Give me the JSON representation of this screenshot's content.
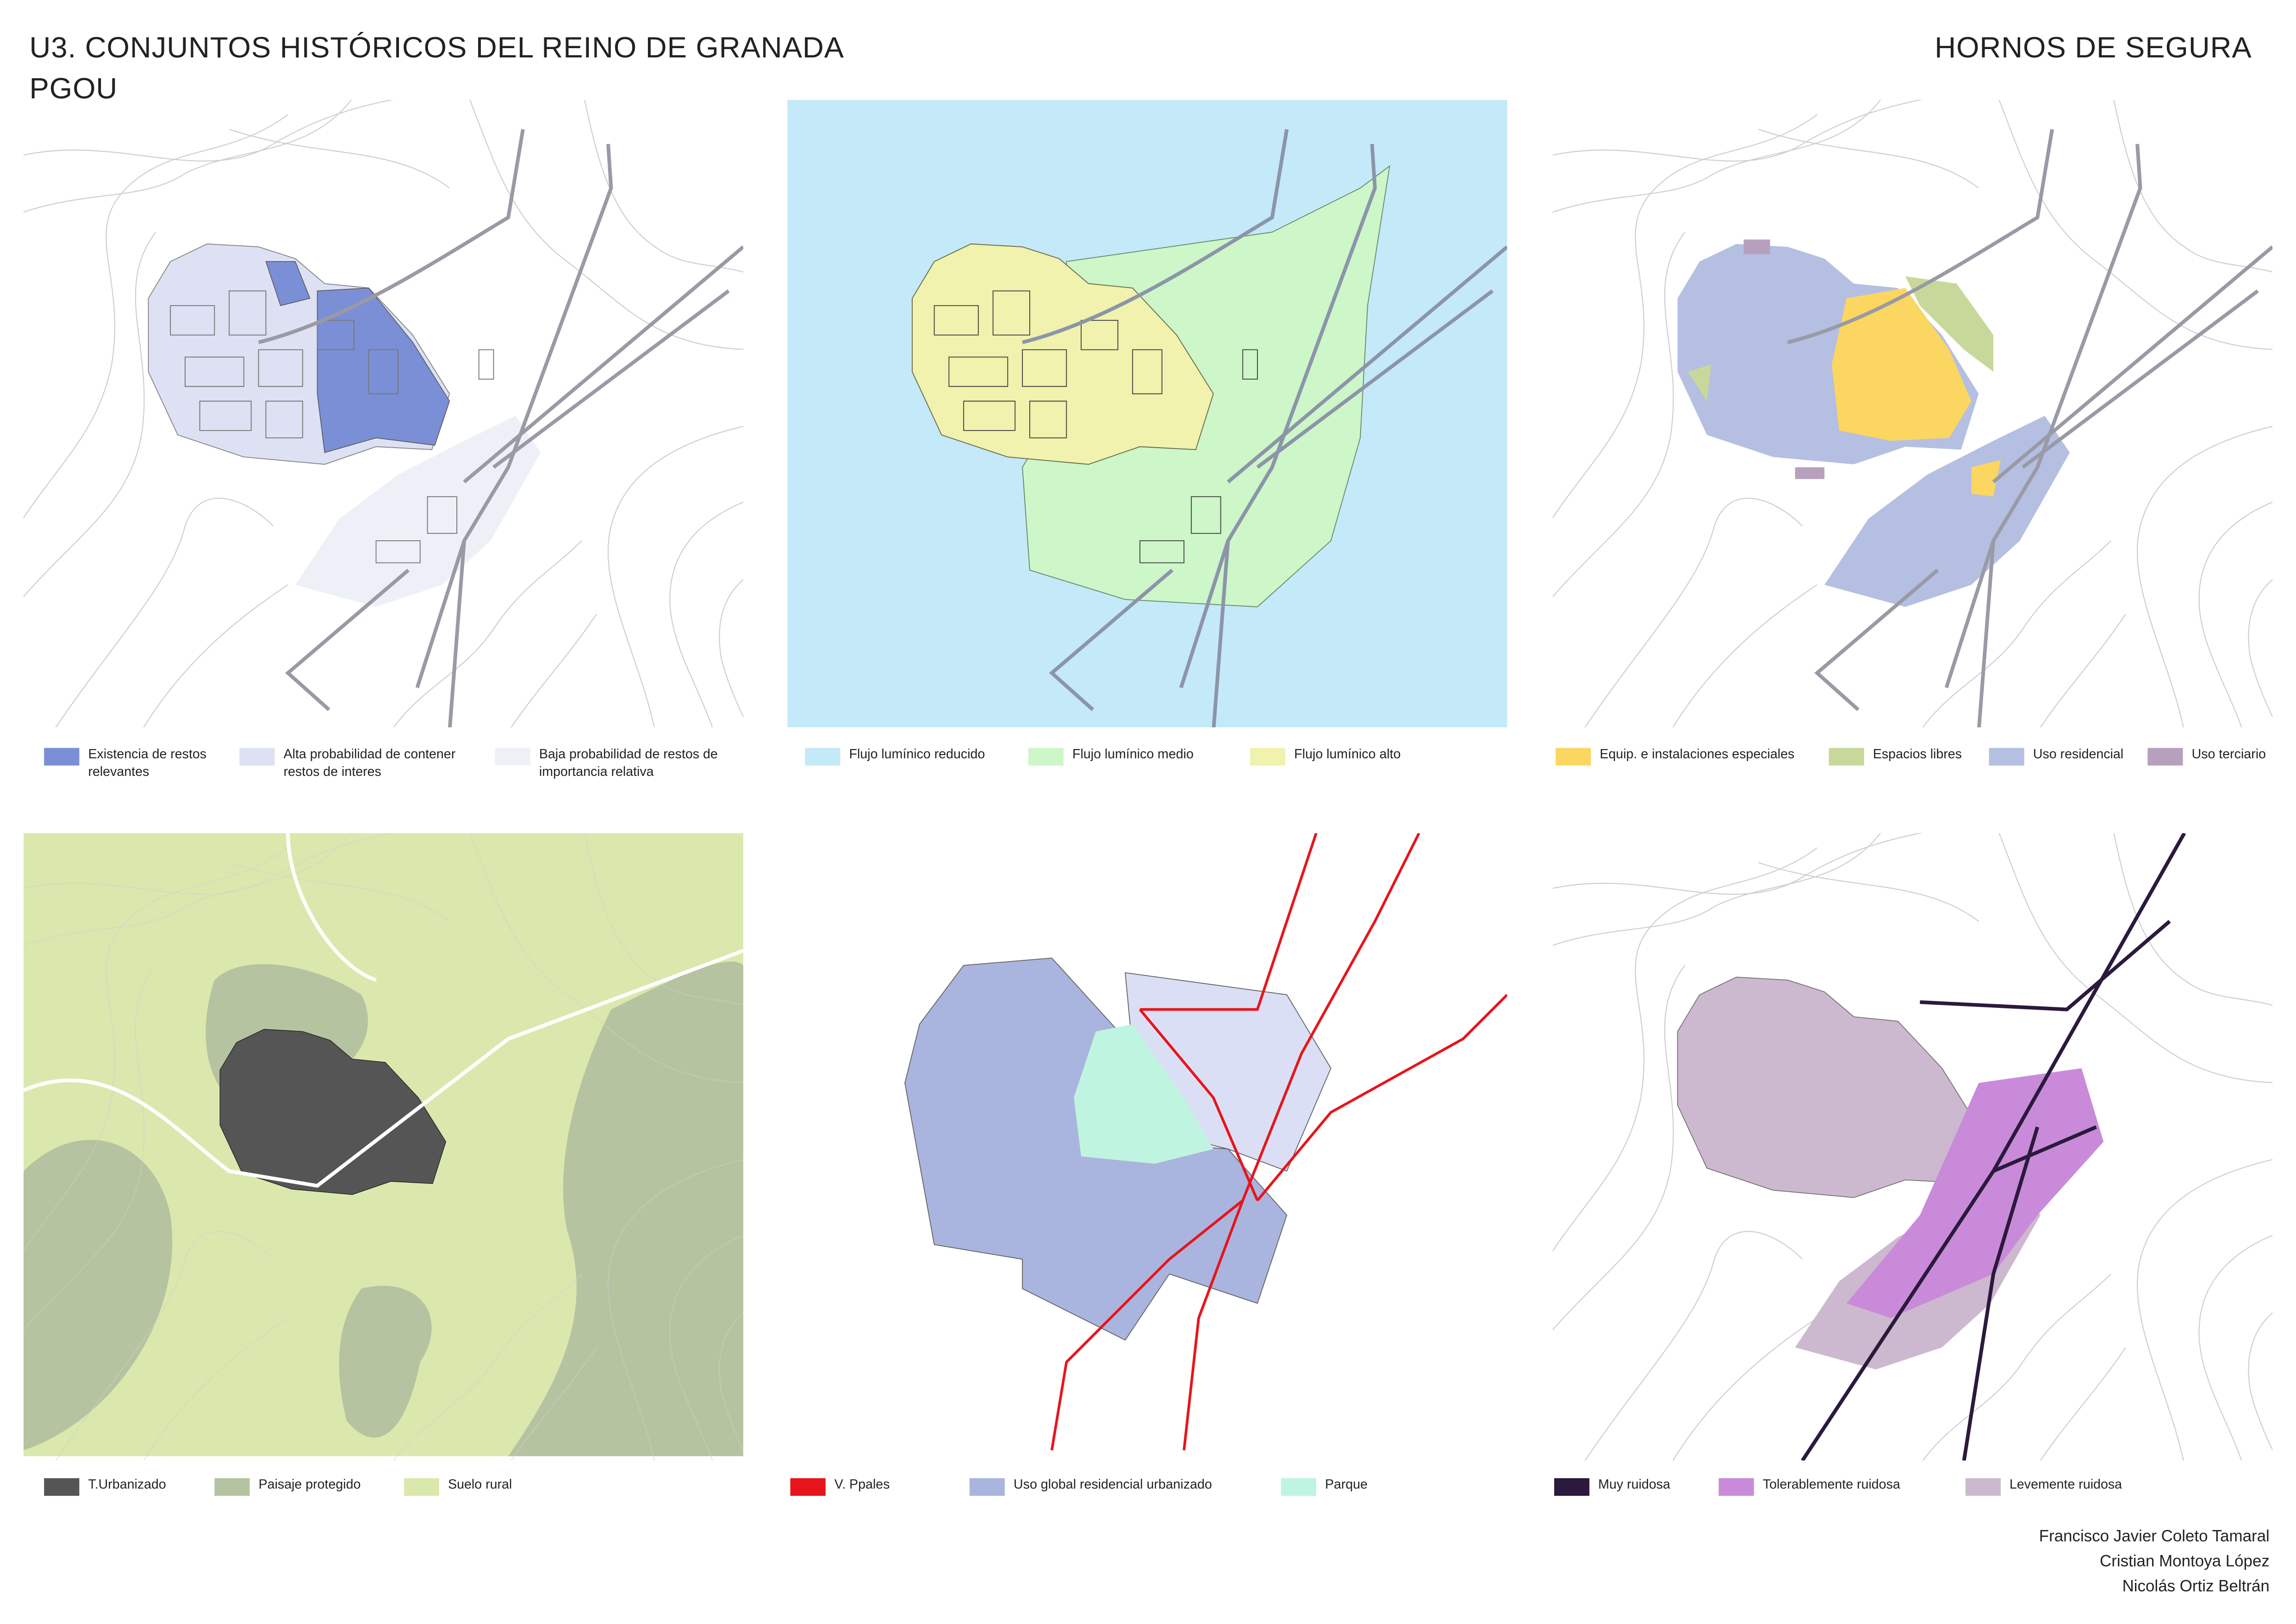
{
  "header": {
    "title": "U3. CONJUNTOS HISTÓRICOS DEL REINO DE GRANADA",
    "subtitle": "PGOU",
    "place": "HORNOS DE SEGURA"
  },
  "maps": [
    {
      "legend": [
        {
          "label": "Existencia de restos relevantes",
          "color": "#7b8fd6"
        },
        {
          "label": "Alta probabilidad de contener restos de interes",
          "color": "#dde1f3"
        },
        {
          "label": "Baja probabilidad de restos de importancia relativa",
          "color": "#eef0f8"
        }
      ]
    },
    {
      "legend": [
        {
          "label": "Flujo lumínico reducido",
          "color": "#c4e9f8"
        },
        {
          "label": "Flujo lumínico medio",
          "color": "#cdf6c9"
        },
        {
          "label": "Flujo lumínico alto",
          "color": "#f0f2ad"
        }
      ]
    },
    {
      "legend": [
        {
          "label": "Equip. e instalaciones especiales",
          "color": "#fbd661"
        },
        {
          "label": "Espacios libres",
          "color": "#c8d89a"
        },
        {
          "label": "Uso residencial",
          "color": "#b4bfe2"
        },
        {
          "label": "Uso terciario",
          "color": "#b7a0bd"
        }
      ]
    },
    {
      "legend": [
        {
          "label": "T.Urbanizado",
          "color": "#555555"
        },
        {
          "label": "Paisaje protegido",
          "color": "#b6c3a0"
        },
        {
          "label": "Suelo rural",
          "color": "#dbe8ad"
        }
      ]
    },
    {
      "legend": [
        {
          "label": "V. Ppales",
          "color": "#e8141b"
        },
        {
          "label": "Uso global residencial urbanizado",
          "color": "#a9b5de"
        },
        {
          "label": "Parque",
          "color": "#bff5e0"
        }
      ]
    },
    {
      "legend": [
        {
          "label": "Muy ruidosa",
          "color": "#2b1a3d"
        },
        {
          "label": "Tolerablemente ruidosa",
          "color": "#c98bd9"
        },
        {
          "label": "Levemente ruidosa",
          "color": "#cdb9cf"
        }
      ]
    }
  ],
  "authors": [
    "Francisco Javier Coleto Tamaral",
    "Cristian Montoya López",
    "Nicolás Ortiz Beltrán"
  ]
}
